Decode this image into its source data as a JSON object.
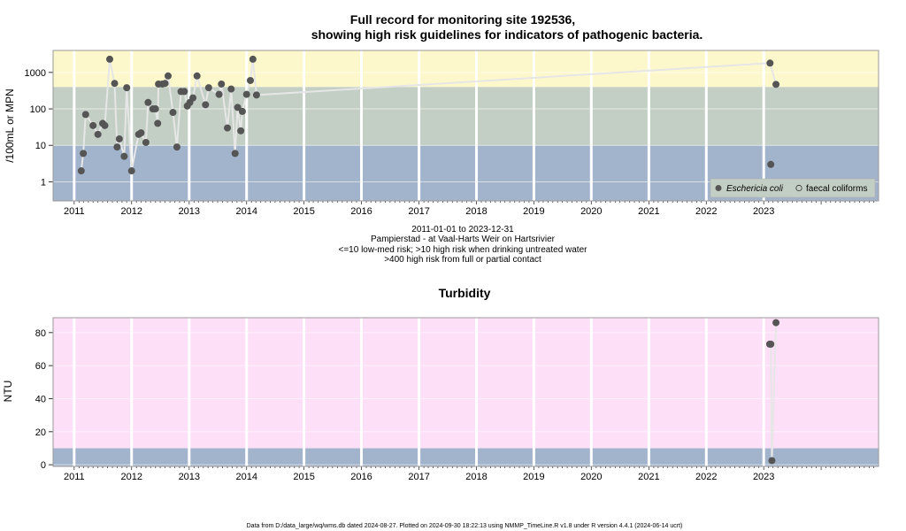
{
  "header": {
    "title_line1": "Full record for monitoring site 192536,",
    "title_line2": "showing high risk guidelines for indicators of pathogenic bacteria."
  },
  "chart_data": [
    {
      "type": "scatter",
      "name": "bacteria",
      "ylabel": "/100mL or MPN",
      "yscale": "log",
      "ylim": [
        0.3,
        4000
      ],
      "xlim": [
        "2010-08-20",
        "2024-12-31"
      ],
      "yticks": [
        1,
        10,
        100,
        1000
      ],
      "ytick_labels": [
        "1",
        "10",
        "100",
        "1000"
      ],
      "xtick_labels": [
        "2011",
        "2012",
        "2013",
        "2014",
        "2015",
        "2016",
        "2017",
        "2018",
        "2019",
        "2020",
        "2021",
        "2022",
        "2023"
      ],
      "bands": [
        {
          "from": 0.3,
          "to": 10,
          "color": "#a2b3cc"
        },
        {
          "from": 10,
          "to": 400,
          "color": "#c3cec4"
        },
        {
          "from": 400,
          "to": 4000,
          "color": "#fdf8cc"
        }
      ],
      "legend": {
        "position": "bottom-right",
        "entries": [
          "Eschericia coli",
          "faecal coliforms"
        ]
      },
      "series": [
        {
          "name": "Eschericia coli",
          "color": "#555555",
          "points": [
            [
              "2011-02-15",
              2
            ],
            [
              "2011-02-28",
              6
            ],
            [
              "2011-03-15",
              70
            ],
            [
              "2011-05-01",
              35
            ],
            [
              "2011-06-01",
              20
            ],
            [
              "2011-07-01",
              40
            ],
            [
              "2011-07-15",
              35
            ],
            [
              "2011-08-15",
              2300
            ],
            [
              "2011-09-15",
              500
            ],
            [
              "2011-10-01",
              9
            ],
            [
              "2011-10-15",
              15
            ],
            [
              "2011-11-15",
              5
            ],
            [
              "2011-12-01",
              380
            ],
            [
              "2012-01-01",
              2
            ],
            [
              "2012-02-15",
              20
            ],
            [
              "2012-03-01",
              22
            ],
            [
              "2012-04-01",
              12
            ],
            [
              "2012-04-15",
              150
            ],
            [
              "2012-05-15",
              100
            ],
            [
              "2012-06-01",
              100
            ],
            [
              "2012-06-15",
              40
            ],
            [
              "2012-06-20",
              480
            ],
            [
              "2012-07-15",
              480
            ],
            [
              "2012-08-01",
              500
            ],
            [
              "2012-08-20",
              800
            ],
            [
              "2012-09-20",
              80
            ],
            [
              "2012-10-15",
              9
            ],
            [
              "2012-11-10",
              300
            ],
            [
              "2012-12-01",
              300
            ],
            [
              "2012-12-20",
              120
            ],
            [
              "2013-01-05",
              150
            ],
            [
              "2013-01-25",
              200
            ],
            [
              "2013-02-20",
              800
            ],
            [
              "2013-04-15",
              130
            ],
            [
              "2013-05-05",
              380
            ],
            [
              "2013-07-10",
              250
            ],
            [
              "2013-07-25",
              480
            ],
            [
              "2013-09-01",
              30
            ],
            [
              "2013-09-25",
              350
            ],
            [
              "2013-10-20",
              6
            ],
            [
              "2013-11-05",
              110
            ],
            [
              "2013-11-25",
              25
            ],
            [
              "2013-12-05",
              85
            ],
            [
              "2014-01-01",
              250
            ],
            [
              "2014-01-25",
              600
            ],
            [
              "2014-02-10",
              2300
            ],
            [
              "2014-03-05",
              240
            ],
            [
              "2023-02-10",
              1800
            ],
            [
              "2023-03-20",
              470
            ],
            [
              "2023-02-15",
              3
            ]
          ]
        }
      ]
    },
    {
      "type": "line",
      "name": "turbidity",
      "title": "Turbidity",
      "ylabel": "NTU",
      "ylim": [
        -1,
        89
      ],
      "xlim": [
        "2010-08-20",
        "2024-12-31"
      ],
      "yticks": [
        0,
        20,
        40,
        60,
        80
      ],
      "ytick_labels": [
        "0",
        "20",
        "40",
        "60",
        "80"
      ],
      "xtick_labels": [
        "2011",
        "2012",
        "2013",
        "2014",
        "2015",
        "2016",
        "2017",
        "2018",
        "2019",
        "2020",
        "2021",
        "2022",
        "2023"
      ],
      "bands": [
        {
          "from": -1,
          "to": 10,
          "color": "#a2b3cc"
        },
        {
          "from": 10,
          "to": 89,
          "color": "#fddff7"
        }
      ],
      "series": [
        {
          "name": "",
          "color": "#555555",
          "points": [
            [
              "2023-02-08",
              73
            ],
            [
              "2023-02-15",
              73
            ],
            [
              "2023-02-22",
              2.5
            ],
            [
              "2023-03-20",
              86
            ]
          ]
        }
      ]
    }
  ],
  "captions": {
    "date_range": "2011-01-01 to 2023-12-31",
    "location": "Pampierstad - at Vaal-Harts Weir on Hartsrivier",
    "risk_low": "<=10 low-med risk; >10 high risk when drinking untreated water",
    "risk_high": ">400 high risk from full or partial contact"
  },
  "footer": "Data from D:/data_large/wq/wms.db dated 2024-08-27. Plotted on 2024-09-30 18:22:13 using NMMP_TimeLine.R v1.8 under R version 4.4.1 (2024-06-14 ucrt)"
}
